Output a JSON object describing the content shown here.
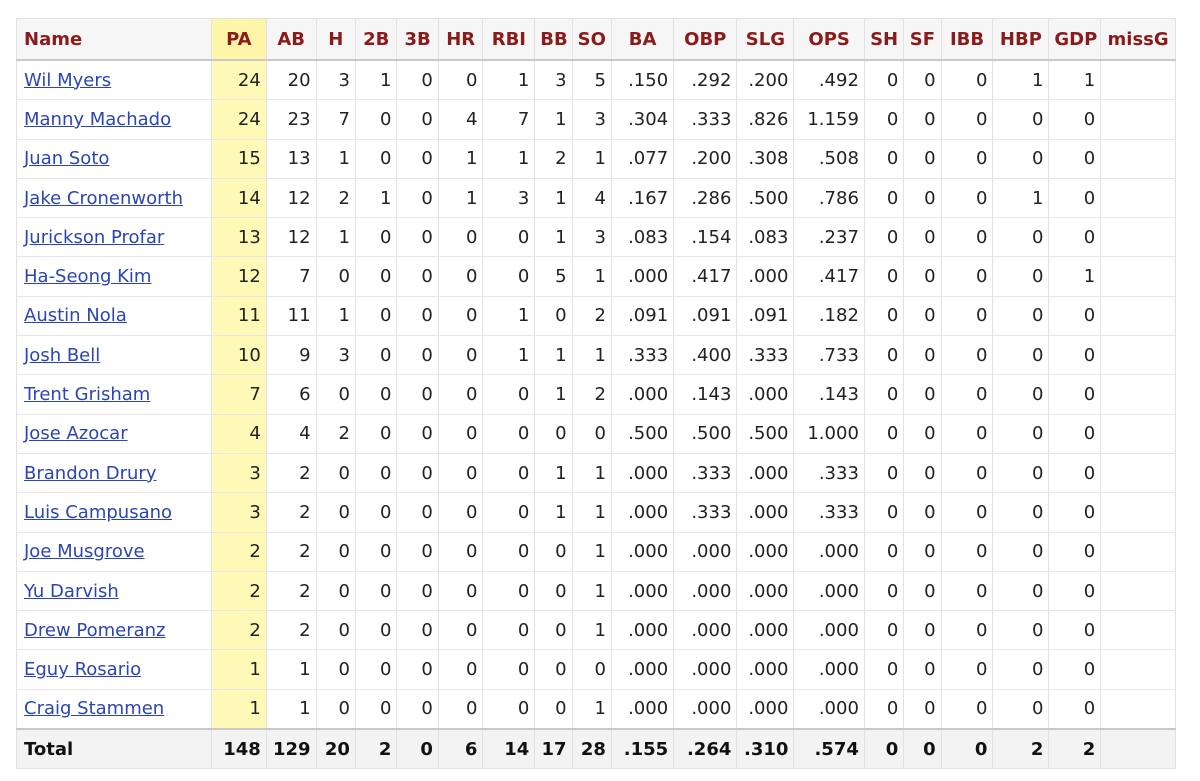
{
  "headers": [
    "Name",
    "PA",
    "AB",
    "H",
    "2B",
    "3B",
    "HR",
    "RBI",
    "BB",
    "SO",
    "BA",
    "OBP",
    "SLG",
    "OPS",
    "SH",
    "SF",
    "IBB",
    "HBP",
    "GDP",
    "missG"
  ],
  "rows": [
    {
      "name": "Wil Myers",
      "PA": "24",
      "AB": "20",
      "H": "3",
      "2B": "1",
      "3B": "0",
      "HR": "0",
      "RBI": "1",
      "BB": "3",
      "SO": "5",
      "BA": ".150",
      "OBP": ".292",
      "SLG": ".200",
      "OPS": ".492",
      "SH": "0",
      "SF": "0",
      "IBB": "0",
      "HBP": "1",
      "GDP": "1",
      "missG": ""
    },
    {
      "name": "Manny Machado",
      "PA": "24",
      "AB": "23",
      "H": "7",
      "2B": "0",
      "3B": "0",
      "HR": "4",
      "RBI": "7",
      "BB": "1",
      "SO": "3",
      "BA": ".304",
      "OBP": ".333",
      "SLG": ".826",
      "OPS": "1.159",
      "SH": "0",
      "SF": "0",
      "IBB": "0",
      "HBP": "0",
      "GDP": "0",
      "missG": ""
    },
    {
      "name": "Juan Soto",
      "PA": "15",
      "AB": "13",
      "H": "1",
      "2B": "0",
      "3B": "0",
      "HR": "1",
      "RBI": "1",
      "BB": "2",
      "SO": "1",
      "BA": ".077",
      "OBP": ".200",
      "SLG": ".308",
      "OPS": ".508",
      "SH": "0",
      "SF": "0",
      "IBB": "0",
      "HBP": "0",
      "GDP": "0",
      "missG": ""
    },
    {
      "name": "Jake Cronenworth",
      "PA": "14",
      "AB": "12",
      "H": "2",
      "2B": "1",
      "3B": "0",
      "HR": "1",
      "RBI": "3",
      "BB": "1",
      "SO": "4",
      "BA": ".167",
      "OBP": ".286",
      "SLG": ".500",
      "OPS": ".786",
      "SH": "0",
      "SF": "0",
      "IBB": "0",
      "HBP": "1",
      "GDP": "0",
      "missG": ""
    },
    {
      "name": "Jurickson Profar",
      "PA": "13",
      "AB": "12",
      "H": "1",
      "2B": "0",
      "3B": "0",
      "HR": "0",
      "RBI": "0",
      "BB": "1",
      "SO": "3",
      "BA": ".083",
      "OBP": ".154",
      "SLG": ".083",
      "OPS": ".237",
      "SH": "0",
      "SF": "0",
      "IBB": "0",
      "HBP": "0",
      "GDP": "0",
      "missG": ""
    },
    {
      "name": "Ha-Seong Kim",
      "PA": "12",
      "AB": "7",
      "H": "0",
      "2B": "0",
      "3B": "0",
      "HR": "0",
      "RBI": "0",
      "BB": "5",
      "SO": "1",
      "BA": ".000",
      "OBP": ".417",
      "SLG": ".000",
      "OPS": ".417",
      "SH": "0",
      "SF": "0",
      "IBB": "0",
      "HBP": "0",
      "GDP": "1",
      "missG": ""
    },
    {
      "name": "Austin Nola",
      "PA": "11",
      "AB": "11",
      "H": "1",
      "2B": "0",
      "3B": "0",
      "HR": "0",
      "RBI": "1",
      "BB": "0",
      "SO": "2",
      "BA": ".091",
      "OBP": ".091",
      "SLG": ".091",
      "OPS": ".182",
      "SH": "0",
      "SF": "0",
      "IBB": "0",
      "HBP": "0",
      "GDP": "0",
      "missG": ""
    },
    {
      "name": "Josh Bell",
      "PA": "10",
      "AB": "9",
      "H": "3",
      "2B": "0",
      "3B": "0",
      "HR": "0",
      "RBI": "1",
      "BB": "1",
      "SO": "1",
      "BA": ".333",
      "OBP": ".400",
      "SLG": ".333",
      "OPS": ".733",
      "SH": "0",
      "SF": "0",
      "IBB": "0",
      "HBP": "0",
      "GDP": "0",
      "missG": ""
    },
    {
      "name": "Trent Grisham",
      "PA": "7",
      "AB": "6",
      "H": "0",
      "2B": "0",
      "3B": "0",
      "HR": "0",
      "RBI": "0",
      "BB": "1",
      "SO": "2",
      "BA": ".000",
      "OBP": ".143",
      "SLG": ".000",
      "OPS": ".143",
      "SH": "0",
      "SF": "0",
      "IBB": "0",
      "HBP": "0",
      "GDP": "0",
      "missG": ""
    },
    {
      "name": "Jose Azocar",
      "PA": "4",
      "AB": "4",
      "H": "2",
      "2B": "0",
      "3B": "0",
      "HR": "0",
      "RBI": "0",
      "BB": "0",
      "SO": "0",
      "BA": ".500",
      "OBP": ".500",
      "SLG": ".500",
      "OPS": "1.000",
      "SH": "0",
      "SF": "0",
      "IBB": "0",
      "HBP": "0",
      "GDP": "0",
      "missG": ""
    },
    {
      "name": "Brandon Drury",
      "PA": "3",
      "AB": "2",
      "H": "0",
      "2B": "0",
      "3B": "0",
      "HR": "0",
      "RBI": "0",
      "BB": "1",
      "SO": "1",
      "BA": ".000",
      "OBP": ".333",
      "SLG": ".000",
      "OPS": ".333",
      "SH": "0",
      "SF": "0",
      "IBB": "0",
      "HBP": "0",
      "GDP": "0",
      "missG": ""
    },
    {
      "name": "Luis Campusano",
      "PA": "3",
      "AB": "2",
      "H": "0",
      "2B": "0",
      "3B": "0",
      "HR": "0",
      "RBI": "0",
      "BB": "1",
      "SO": "1",
      "BA": ".000",
      "OBP": ".333",
      "SLG": ".000",
      "OPS": ".333",
      "SH": "0",
      "SF": "0",
      "IBB": "0",
      "HBP": "0",
      "GDP": "0",
      "missG": ""
    },
    {
      "name": "Joe Musgrove",
      "PA": "2",
      "AB": "2",
      "H": "0",
      "2B": "0",
      "3B": "0",
      "HR": "0",
      "RBI": "0",
      "BB": "0",
      "SO": "1",
      "BA": ".000",
      "OBP": ".000",
      "SLG": ".000",
      "OPS": ".000",
      "SH": "0",
      "SF": "0",
      "IBB": "0",
      "HBP": "0",
      "GDP": "0",
      "missG": ""
    },
    {
      "name": "Yu Darvish",
      "PA": "2",
      "AB": "2",
      "H": "0",
      "2B": "0",
      "3B": "0",
      "HR": "0",
      "RBI": "0",
      "BB": "0",
      "SO": "1",
      "BA": ".000",
      "OBP": ".000",
      "SLG": ".000",
      "OPS": ".000",
      "SH": "0",
      "SF": "0",
      "IBB": "0",
      "HBP": "0",
      "GDP": "0",
      "missG": ""
    },
    {
      "name": "Drew Pomeranz",
      "PA": "2",
      "AB": "2",
      "H": "0",
      "2B": "0",
      "3B": "0",
      "HR": "0",
      "RBI": "0",
      "BB": "0",
      "SO": "1",
      "BA": ".000",
      "OBP": ".000",
      "SLG": ".000",
      "OPS": ".000",
      "SH": "0",
      "SF": "0",
      "IBB": "0",
      "HBP": "0",
      "GDP": "0",
      "missG": ""
    },
    {
      "name": "Eguy Rosario",
      "PA": "1",
      "AB": "1",
      "H": "0",
      "2B": "0",
      "3B": "0",
      "HR": "0",
      "RBI": "0",
      "BB": "0",
      "SO": "0",
      "BA": ".000",
      "OBP": ".000",
      "SLG": ".000",
      "OPS": ".000",
      "SH": "0",
      "SF": "0",
      "IBB": "0",
      "HBP": "0",
      "GDP": "0",
      "missG": ""
    },
    {
      "name": "Craig Stammen",
      "PA": "1",
      "AB": "1",
      "H": "0",
      "2B": "0",
      "3B": "0",
      "HR": "0",
      "RBI": "0",
      "BB": "0",
      "SO": "1",
      "BA": ".000",
      "OBP": ".000",
      "SLG": ".000",
      "OPS": ".000",
      "SH": "0",
      "SF": "0",
      "IBB": "0",
      "HBP": "0",
      "GDP": "0",
      "missG": ""
    }
  ],
  "total": {
    "name": "Total",
    "PA": "148",
    "AB": "129",
    "H": "20",
    "2B": "2",
    "3B": "0",
    "HR": "6",
    "RBI": "14",
    "BB": "17",
    "SO": "28",
    "BA": ".155",
    "OBP": ".264",
    "SLG": ".310",
    "OPS": ".574",
    "SH": "0",
    "SF": "0",
    "IBB": "0",
    "HBP": "2",
    "GDP": "2",
    "missG": ""
  }
}
